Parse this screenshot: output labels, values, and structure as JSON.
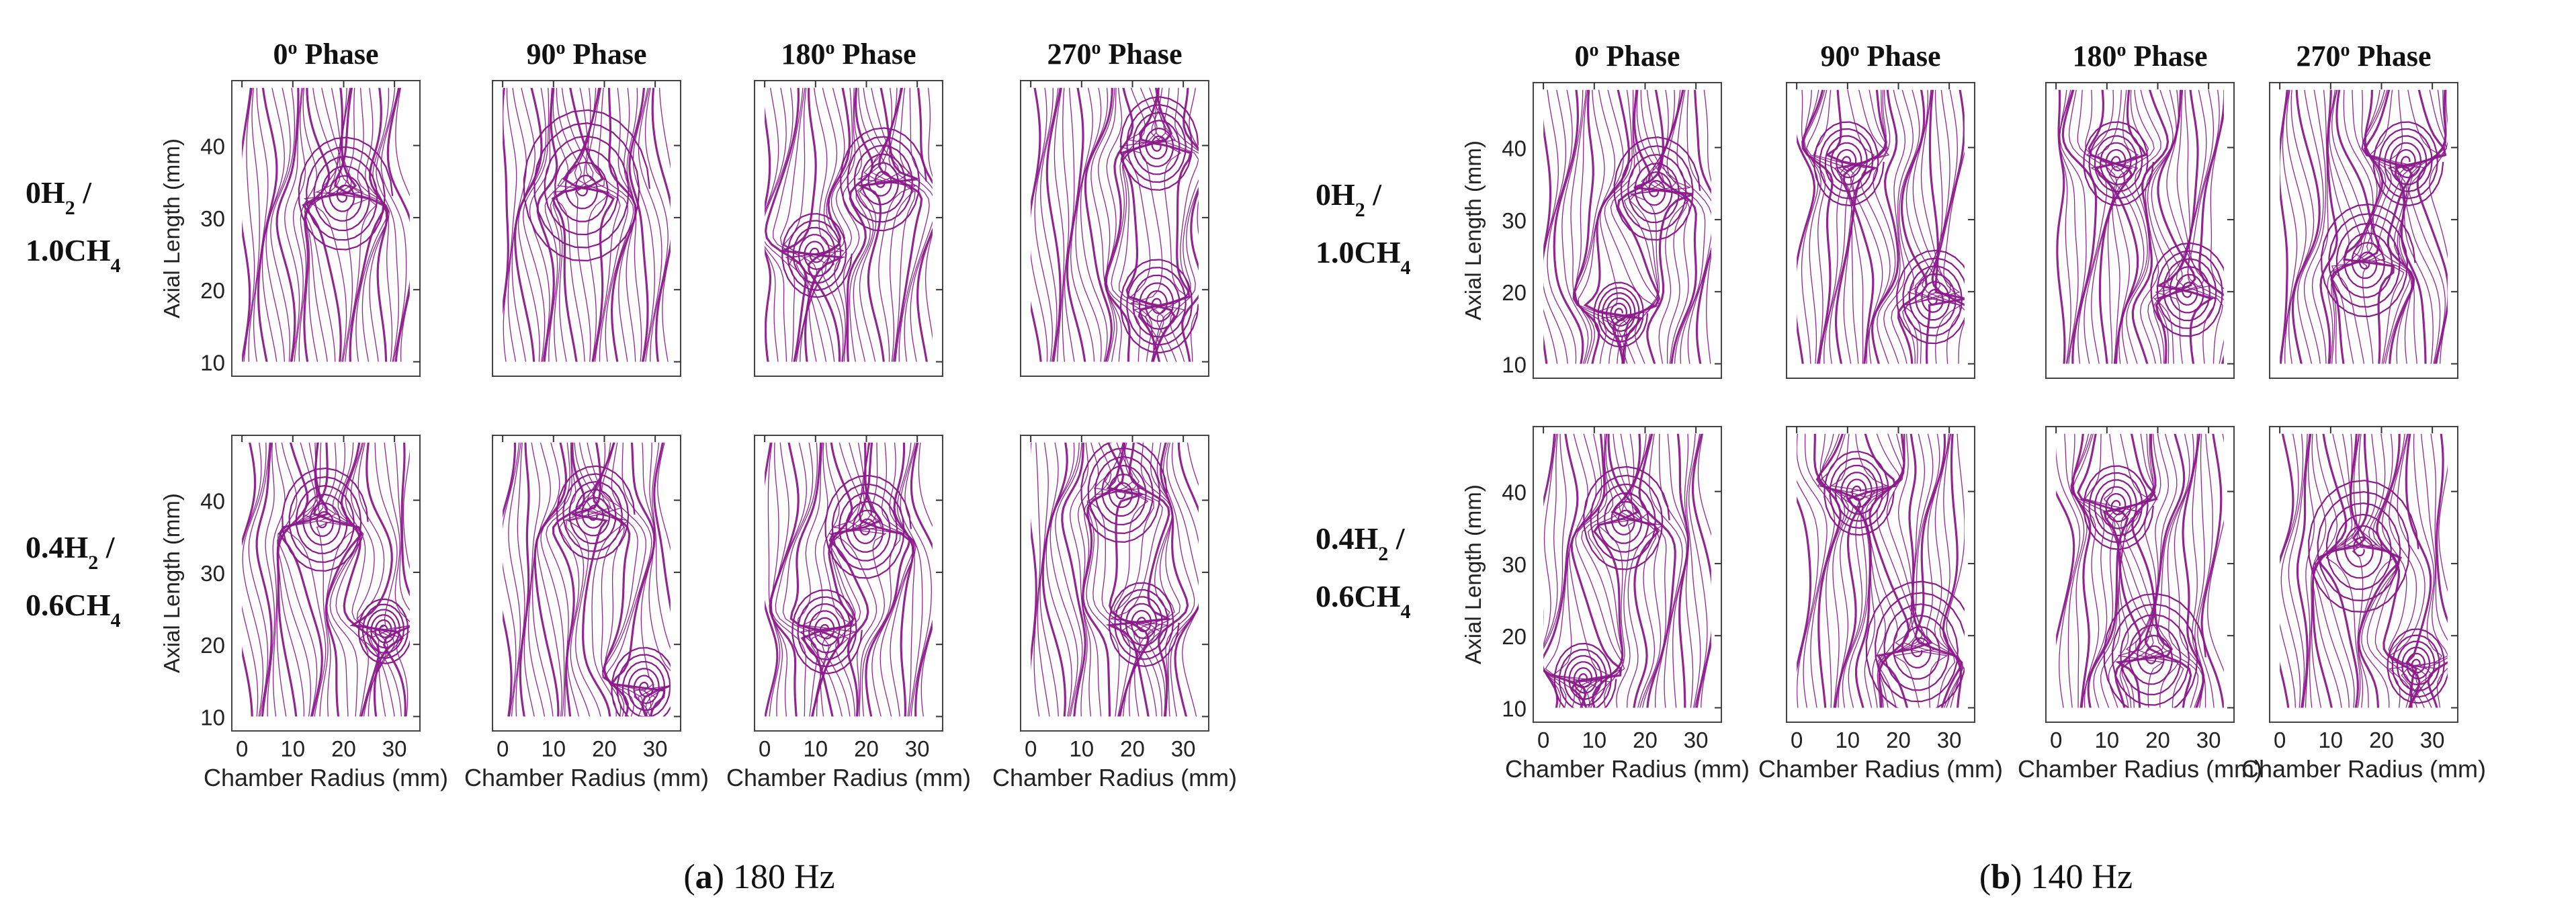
{
  "figure": {
    "panels": [
      {
        "letter": "a",
        "caption_rest": " 180 Hz"
      },
      {
        "letter": "b",
        "caption_rest": " 140 Hz"
      }
    ],
    "phase_labels": [
      {
        "base": "0",
        "sup": "o",
        "rest": " Phase"
      },
      {
        "base": "90",
        "sup": "o",
        "rest": " Phase"
      },
      {
        "base": "180",
        "sup": "o",
        "rest": " Phase"
      },
      {
        "base": "270",
        "sup": "o",
        "rest": " Phase"
      }
    ],
    "mixture_labels": [
      {
        "line1": [
          [
            "0H",
            "2",
            " /"
          ]
        ],
        "line2": [
          [
            "1.0CH",
            "4",
            ""
          ]
        ]
      },
      {
        "line1": [
          [
            "0.4H",
            "2",
            " /"
          ]
        ],
        "line2": [
          [
            "0.6CH",
            "4",
            ""
          ]
        ]
      }
    ]
  },
  "chart_data": {
    "type": "streamline_grid",
    "panels": [
      {
        "panel": "a",
        "frequency_label": "180 Hz"
      },
      {
        "panel": "b",
        "frequency_label": "140 Hz"
      }
    ],
    "rows": [
      "0H2 / 1.0CH4",
      "0.4H2 / 0.6CH4"
    ],
    "columns": [
      "0° Phase",
      "90° Phase",
      "180° Phase",
      "270° Phase"
    ],
    "xlabel": "Chamber Radius (mm)",
    "ylabel": "Axial Length (mm)",
    "xticks": [
      0,
      10,
      20,
      30
    ],
    "yticks": [
      10,
      20,
      30,
      40
    ],
    "xlim": [
      -2,
      35
    ],
    "ylim": [
      8,
      49
    ],
    "data_region": {
      "x": [
        0,
        33
      ],
      "y": [
        10,
        48
      ]
    },
    "line_color": "#8B1A8B",
    "vortices": [
      [
        [
          [
            [
              20,
              33,
              0.55,
              1
            ]
          ],
          [
            [
              16,
              34,
              0.75,
              1
            ]
          ],
          [
            [
              23,
              35,
              0.5,
              1
            ],
            [
              10,
              25,
              0.4,
              -1
            ]
          ],
          [
            [
              25,
              40,
              0.45,
              1
            ],
            [
              25,
              18,
              0.45,
              -1
            ]
          ]
        ],
        [
          [
            [
              16,
              37,
              0.5,
              1
            ],
            [
              28,
              22,
              0.3,
              -1
            ]
          ],
          [
            [
              18,
              38,
              0.45,
              1
            ],
            [
              28,
              14,
              0.4,
              -1
            ]
          ],
          [
            [
              20,
              36,
              0.5,
              1
            ],
            [
              12,
              22,
              0.4,
              -1
            ]
          ],
          [
            [
              18,
              41,
              0.5,
              1
            ],
            [
              22,
              23,
              0.4,
              -1
            ]
          ]
        ]
      ],
      [
        [
          [
            [
              22,
              34,
              0.5,
              1
            ],
            [
              15,
              17,
              0.3,
              -1
            ]
          ],
          [
            [
              27,
              19,
              0.45,
              1
            ],
            [
              10,
              38,
              0.4,
              -1
            ]
          ],
          [
            [
              26,
              20,
              0.45,
              1
            ],
            [
              12,
              38,
              0.4,
              -1
            ]
          ],
          [
            [
              17,
              24,
              0.55,
              1
            ],
            [
              25,
              38,
              0.4,
              -1
            ]
          ]
        ],
        [
          [
            [
              16,
              36,
              0.5,
              1
            ],
            [
              8,
              14,
              0.35,
              -1
            ]
          ],
          [
            [
              24,
              18,
              0.65,
              1
            ],
            [
              12,
              40,
              0.4,
              -1
            ]
          ],
          [
            [
              19,
              17,
              0.6,
              1
            ],
            [
              12,
              38,
              0.4,
              -1
            ]
          ],
          [
            [
              16,
              32,
              0.65,
              1
            ],
            [
              27,
              16,
              0.35,
              -1
            ]
          ]
        ]
      ]
    ]
  }
}
